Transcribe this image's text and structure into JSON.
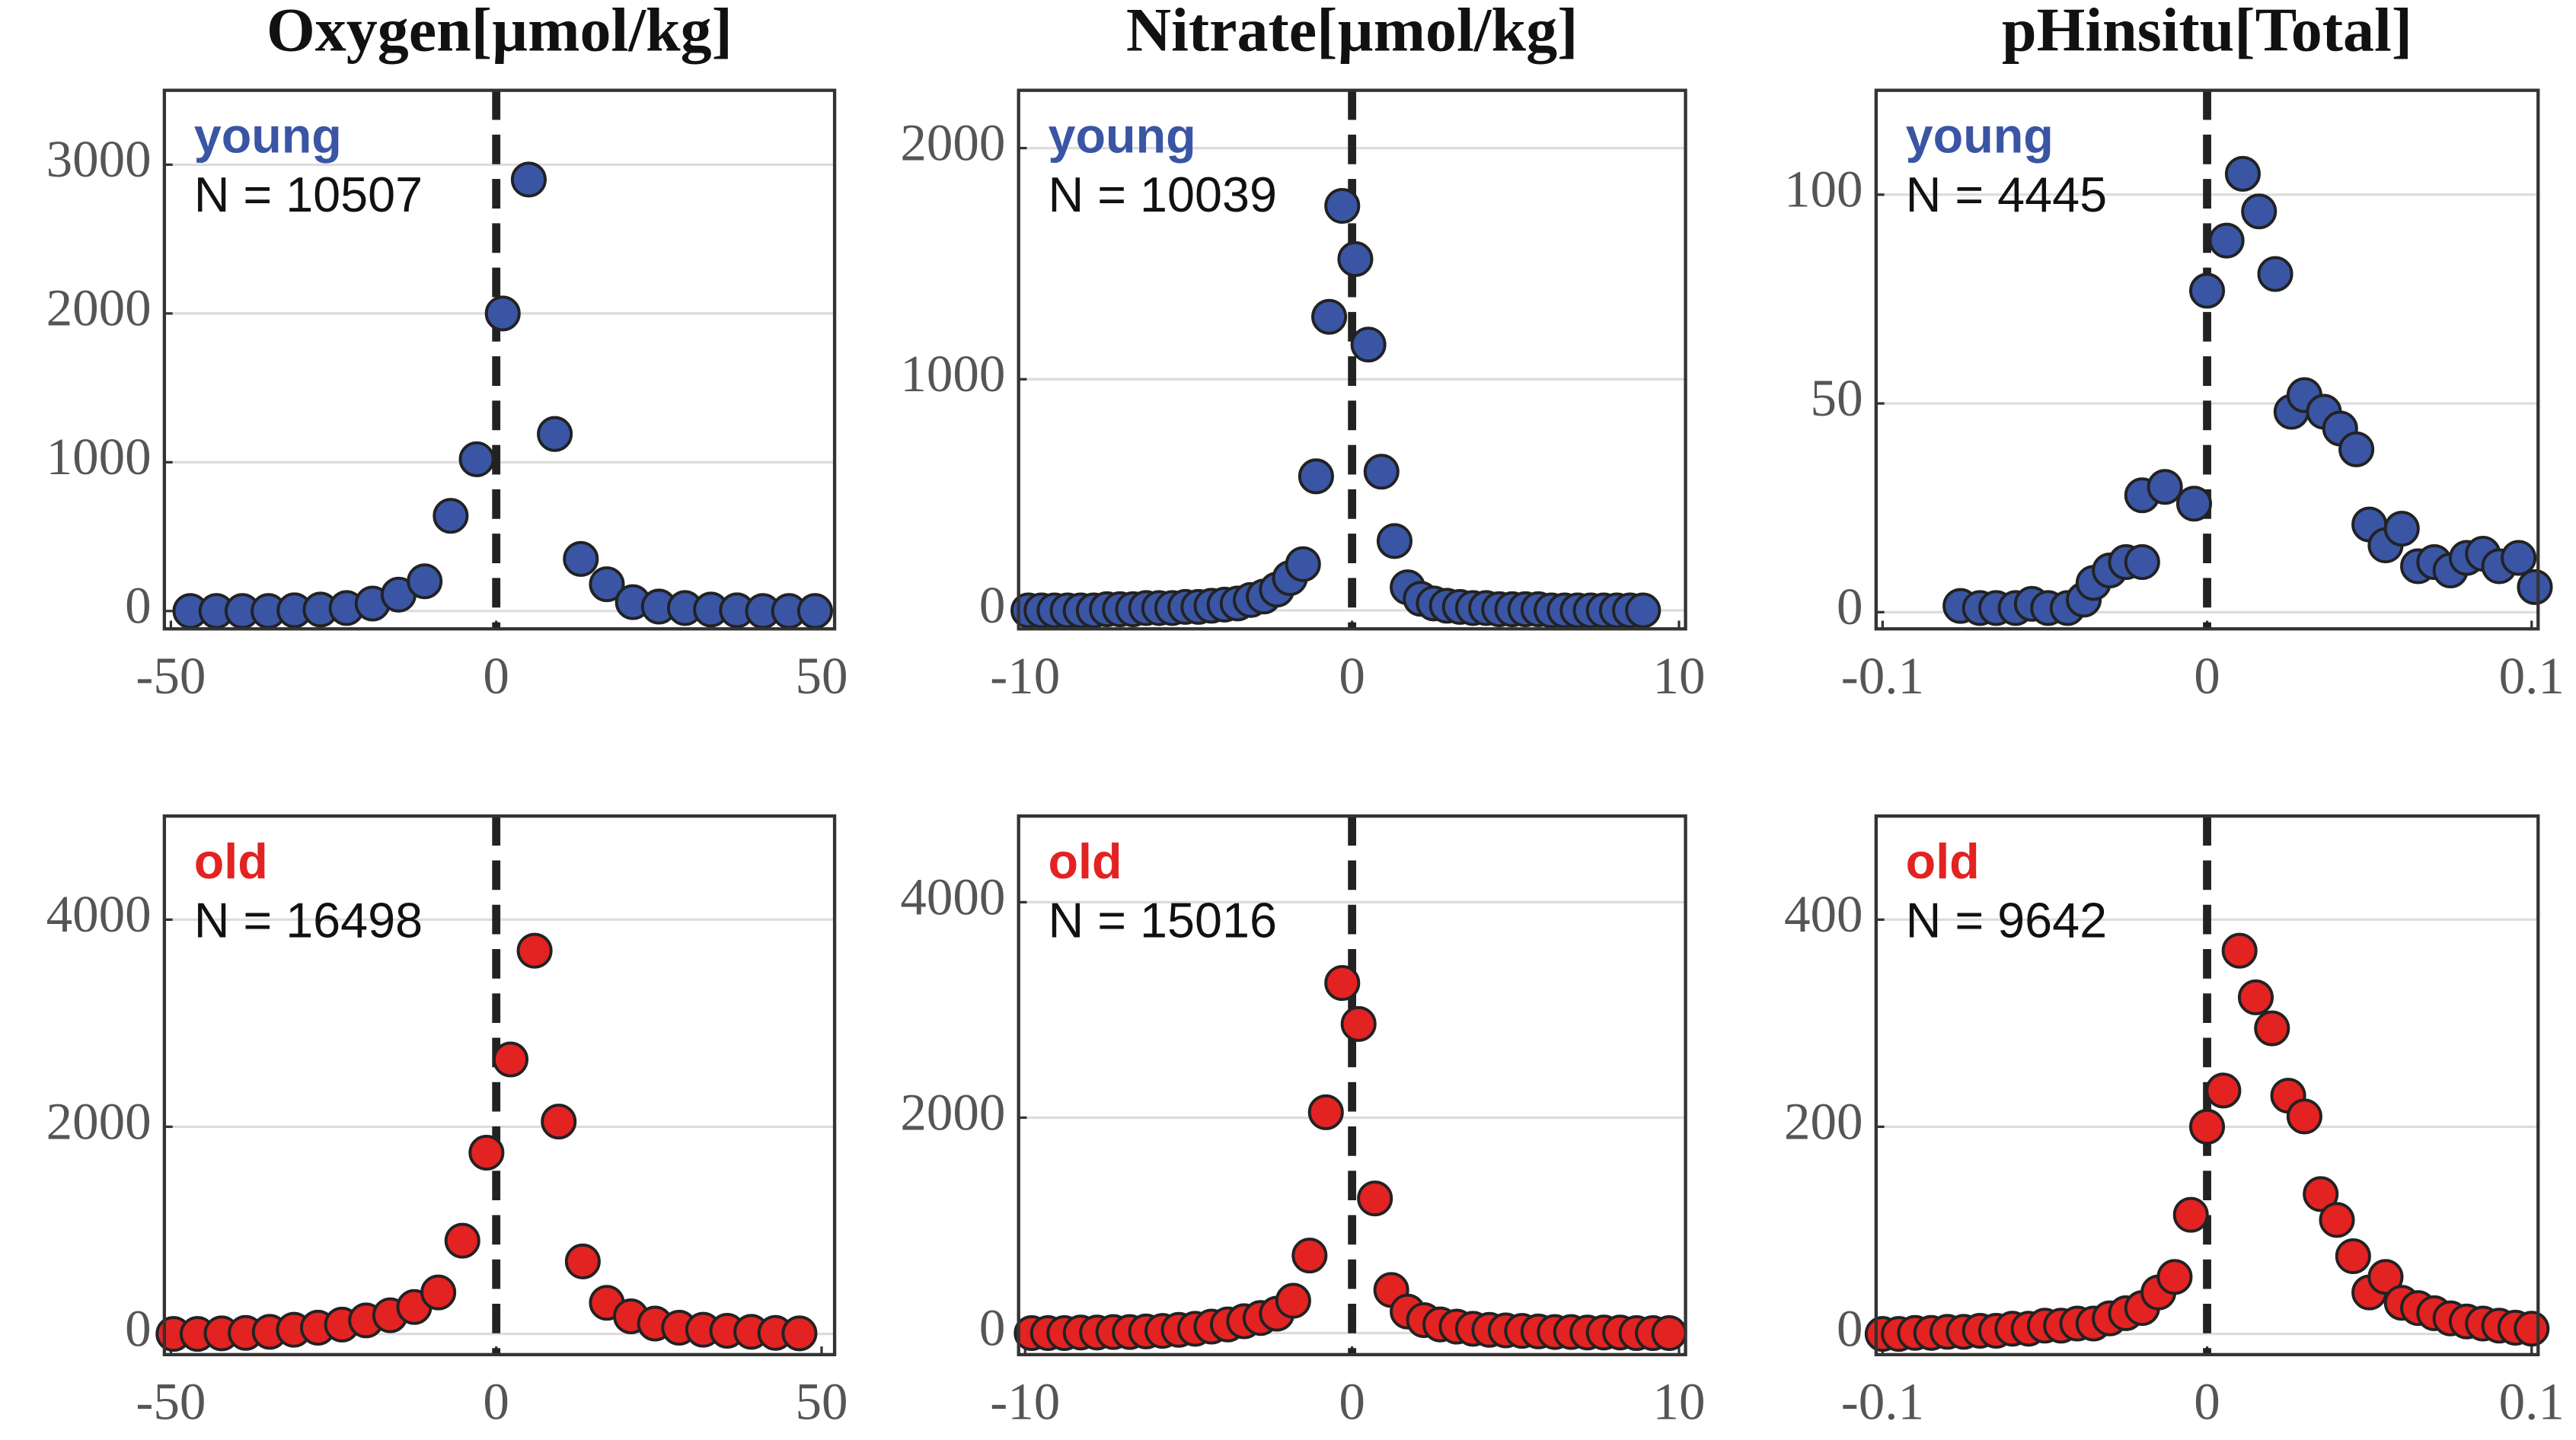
{
  "chart_data": [
    {
      "type": "scatter",
      "title": "Oxygen[µmol/kg]",
      "annotations": [
        "young",
        "N = 10507"
      ],
      "color": "#3a55a4",
      "x": [
        -47,
        -43,
        -39,
        -35,
        -31,
        -27,
        -23,
        -19,
        -15,
        -11,
        -7,
        -3,
        1,
        5,
        9,
        13,
        17,
        21,
        25,
        29,
        33,
        37,
        41,
        45,
        49
      ],
      "values": [
        0,
        0,
        0,
        0,
        5,
        10,
        20,
        50,
        110,
        200,
        640,
        1020,
        2000,
        2900,
        1190,
        350,
        180,
        60,
        30,
        20,
        10,
        5,
        0,
        0,
        0
      ],
      "xlim": [
        -51,
        52
      ],
      "ylim": [
        -120,
        3500
      ],
      "xticks": [
        -50,
        0,
        50
      ],
      "yticks": [
        0,
        1000,
        2000,
        3000
      ],
      "grid": true,
      "vline": 0
    },
    {
      "type": "scatter",
      "title": "Nitrate[µmol/kg]",
      "annotations": [
        "young",
        "N = 10039"
      ],
      "color": "#3a55a4",
      "x": [
        -9.9,
        -9.5,
        -9.1,
        -8.7,
        -8.3,
        -7.9,
        -7.5,
        -7.1,
        -6.7,
        -6.3,
        -5.9,
        -5.5,
        -5.1,
        -4.7,
        -4.3,
        -3.9,
        -3.5,
        -3.1,
        -2.7,
        -2.3,
        -1.9,
        -1.5,
        -1.1,
        -0.7,
        -0.3,
        0.1,
        0.5,
        0.9,
        1.3,
        1.7,
        2.1,
        2.5,
        2.9,
        3.3,
        3.7,
        4.1,
        4.5,
        4.9,
        5.3,
        5.7,
        6.1,
        6.5,
        6.9,
        7.3,
        7.7,
        8.1,
        8.5,
        8.9
      ],
      "values": [
        0,
        0,
        0,
        0,
        0,
        0,
        5,
        5,
        5,
        10,
        10,
        10,
        15,
        15,
        20,
        25,
        30,
        45,
        60,
        90,
        140,
        200,
        580,
        1270,
        1750,
        1520,
        1150,
        600,
        300,
        100,
        50,
        30,
        20,
        15,
        10,
        10,
        5,
        5,
        5,
        5,
        0,
        0,
        0,
        0,
        0,
        0,
        0,
        0
      ],
      "xlim": [
        -10.2,
        10.2
      ],
      "ylim": [
        -80,
        2250
      ],
      "xticks": [
        -10,
        0,
        10
      ],
      "yticks": [
        0,
        1000,
        2000
      ],
      "grid": true,
      "vline": 0
    },
    {
      "type": "scatter",
      "title": "pHinsitu[Total]",
      "annotations": [
        "young",
        "N = 4445"
      ],
      "color": "#3a55a4",
      "x": [
        -0.076,
        -0.07,
        -0.065,
        -0.059,
        -0.054,
        -0.049,
        -0.043,
        -0.038,
        -0.035,
        -0.03,
        -0.025,
        -0.02,
        -0.02,
        -0.013,
        -0.004,
        0,
        0.006,
        0.011,
        0.016,
        0.021,
        0.026,
        0.03,
        0.036,
        0.041,
        0.046,
        0.05,
        0.055,
        0.06,
        0.065,
        0.07,
        0.075,
        0.08,
        0.085,
        0.09,
        0.096,
        0.101
      ],
      "values": [
        1.5,
        1,
        1,
        1,
        2,
        1,
        1,
        3,
        7,
        10,
        12,
        12,
        28,
        30,
        26,
        77,
        89,
        105,
        96,
        81,
        48,
        52,
        48,
        44,
        39,
        21,
        16,
        20,
        11,
        12,
        10,
        13,
        14,
        11,
        13,
        6
      ],
      "xlim": [
        -0.102,
        0.102
      ],
      "ylim": [
        -4,
        125
      ],
      "xticks": [
        -0.1,
        0,
        0.1
      ],
      "yticks": [
        0,
        50,
        100
      ],
      "grid": true,
      "vline": 0
    },
    {
      "type": "scatter",
      "annotations": [
        "old",
        "N = 16498"
      ],
      "color": "#e32222",
      "x": [
        -49.6,
        -45.9,
        -42.2,
        -38.5,
        -34.8,
        -31.1,
        -27.4,
        -23.7,
        -20,
        -16.3,
        -12.6,
        -8.9,
        -5.2,
        -1.5,
        2.2,
        5.9,
        9.6,
        13.3,
        17,
        20.7,
        24.4,
        28.1,
        31.8,
        35.5,
        39.2,
        42.9,
        46.6
      ],
      "values": [
        0,
        0,
        5,
        10,
        20,
        40,
        60,
        90,
        130,
        180,
        260,
        400,
        900,
        1750,
        2650,
        3700,
        2050,
        700,
        300,
        170,
        100,
        60,
        40,
        30,
        20,
        10,
        5
      ],
      "xlim": [
        -51,
        52
      ],
      "ylim": [
        -200,
        5000
      ],
      "xticks": [
        -50,
        0,
        50
      ],
      "yticks": [
        0,
        2000,
        4000
      ],
      "grid": true,
      "vline": 0
    },
    {
      "type": "scatter",
      "annotations": [
        "old",
        "N = 15016"
      ],
      "color": "#e32222",
      "x": [
        -9.8,
        -9.3,
        -8.8,
        -8.3,
        -7.8,
        -7.3,
        -6.8,
        -6.3,
        -5.8,
        -5.3,
        -4.8,
        -4.3,
        -3.8,
        -3.3,
        -2.8,
        -2.3,
        -1.8,
        -1.3,
        -0.8,
        -0.3,
        0.2,
        0.7,
        1.2,
        1.7,
        2.2,
        2.7,
        3.2,
        3.7,
        4.2,
        4.7,
        5.2,
        5.7,
        6.2,
        6.7,
        7.2,
        7.7,
        8.2,
        8.7,
        9.2,
        9.7
      ],
      "values": [
        0,
        0,
        0,
        5,
        5,
        10,
        10,
        15,
        20,
        30,
        40,
        60,
        80,
        110,
        140,
        180,
        300,
        720,
        2050,
        3250,
        2870,
        1250,
        400,
        200,
        120,
        80,
        60,
        40,
        30,
        25,
        20,
        15,
        10,
        10,
        5,
        5,
        5,
        0,
        0,
        0
      ],
      "xlim": [
        -10.2,
        10.2
      ],
      "ylim": [
        -200,
        4800
      ],
      "xticks": [
        -10,
        0,
        10
      ],
      "yticks": [
        0,
        2000,
        4000
      ],
      "grid": true,
      "vline": 0
    },
    {
      "type": "scatter",
      "annotations": [
        "old",
        "N = 9642"
      ],
      "color": "#e32222",
      "x": [
        -0.1,
        -0.095,
        -0.09,
        -0.085,
        -0.08,
        -0.075,
        -0.07,
        -0.065,
        -0.06,
        -0.055,
        -0.05,
        -0.045,
        -0.04,
        -0.035,
        -0.03,
        -0.025,
        -0.02,
        -0.015,
        -0.01,
        -0.005,
        0,
        0.005,
        0.01,
        0.015,
        0.02,
        0.025,
        0.03,
        0.035,
        0.04,
        0.045,
        0.05,
        0.055,
        0.06,
        0.065,
        0.07,
        0.075,
        0.08,
        0.085,
        0.09,
        0.095,
        0.1
      ],
      "values": [
        0,
        0,
        1,
        1,
        2,
        2,
        3,
        3,
        5,
        5,
        8,
        8,
        10,
        10,
        15,
        20,
        25,
        40,
        55,
        115,
        200,
        235,
        370,
        325,
        295,
        230,
        210,
        135,
        110,
        75,
        40,
        55,
        30,
        25,
        20,
        15,
        12,
        10,
        8,
        6,
        5
      ],
      "xlim": [
        -0.102,
        0.102
      ],
      "ylim": [
        -20,
        500
      ],
      "xticks": [
        -0.1,
        0,
        0.1
      ],
      "yticks": [
        0,
        200,
        400
      ],
      "grid": true,
      "vline": 0
    }
  ]
}
